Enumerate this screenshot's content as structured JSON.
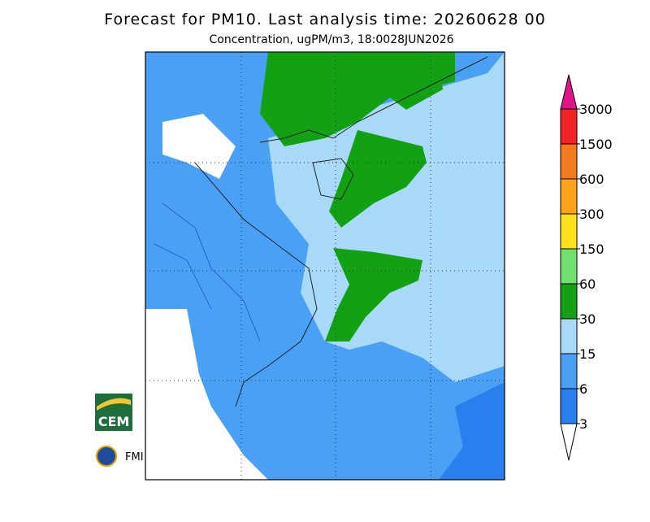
{
  "header": {
    "title": "Forecast for PM10. Last analysis time: 20260628 00",
    "subtitle": "Concentration, ugPM/m3, 18:0028JUN2026"
  },
  "legend": {
    "levels": [
      3,
      6,
      15,
      30,
      60,
      150,
      300,
      600,
      1500,
      3000
    ],
    "colors": [
      "#ffffff",
      "#2a7fef",
      "#4aa0f5",
      "#a9d9f9",
      "#13a013",
      "#6fe06f",
      "#ffe01c",
      "#ffa41a",
      "#f47a1e",
      "#f02424",
      "#e2148c"
    ]
  },
  "logos": {
    "cem": "CEM",
    "fmi": "FMI"
  }
}
